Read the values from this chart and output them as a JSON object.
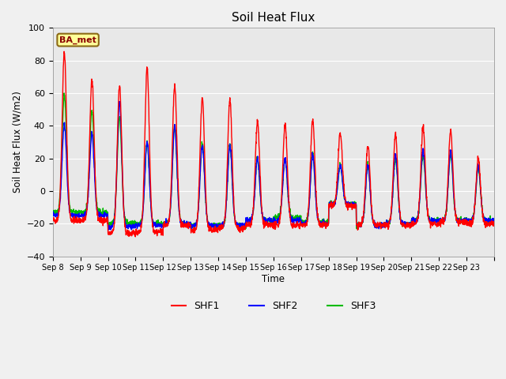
{
  "title": "Soil Heat Flux",
  "ylabel": "Soil Heat Flux (W/m2)",
  "xlabel": "Time",
  "ylim": [
    -40,
    100
  ],
  "background_color": "#f0f0f0",
  "plot_bg_color": "#e8e8e8",
  "legend_label": "BA_met",
  "series_colors": {
    "SHF1": "#ff0000",
    "SHF2": "#0000ff",
    "SHF3": "#00bb00"
  },
  "x_tick_labels": [
    "Sep 8",
    "Sep 9",
    "Sep 10",
    "Sep 11",
    "Sep 12",
    "Sep 13",
    "Sep 14",
    "Sep 15",
    "Sep 16",
    "Sep 17",
    "Sep 18",
    "Sep 19",
    "Sep 20",
    "Sep 21",
    "Sep 22",
    "Sep 23"
  ],
  "n_days": 16,
  "peaks_shf1": [
    85,
    68,
    65,
    75,
    65,
    57,
    56,
    43,
    41,
    44,
    35,
    27,
    35,
    39,
    37,
    20
  ],
  "peaks_shf2": [
    41,
    35,
    54,
    30,
    40,
    28,
    28,
    20,
    20,
    22,
    16,
    16,
    22,
    25,
    25,
    15
  ],
  "peaks_shf3": [
    59,
    49,
    45,
    30,
    40,
    30,
    28,
    20,
    20,
    23,
    16,
    16,
    20,
    22,
    23,
    14
  ],
  "troughs_shf1": [
    -18,
    -18,
    -26,
    -25,
    -21,
    -24,
    -23,
    -21,
    -21,
    -21,
    -9,
    -21,
    -21,
    -20,
    -19,
    -20
  ],
  "troughs_shf2": [
    -15,
    -15,
    -22,
    -21,
    -20,
    -21,
    -21,
    -18,
    -18,
    -20,
    -8,
    -21,
    -20,
    -18,
    -18,
    -18
  ],
  "troughs_shf3": [
    -13,
    -13,
    -20,
    -20,
    -20,
    -21,
    -21,
    -18,
    -16,
    -19,
    -8,
    -21,
    -20,
    -18,
    -18,
    -18
  ],
  "linewidth": 1.0,
  "yticks": [
    -40,
    -20,
    0,
    20,
    40,
    60,
    80,
    100
  ]
}
